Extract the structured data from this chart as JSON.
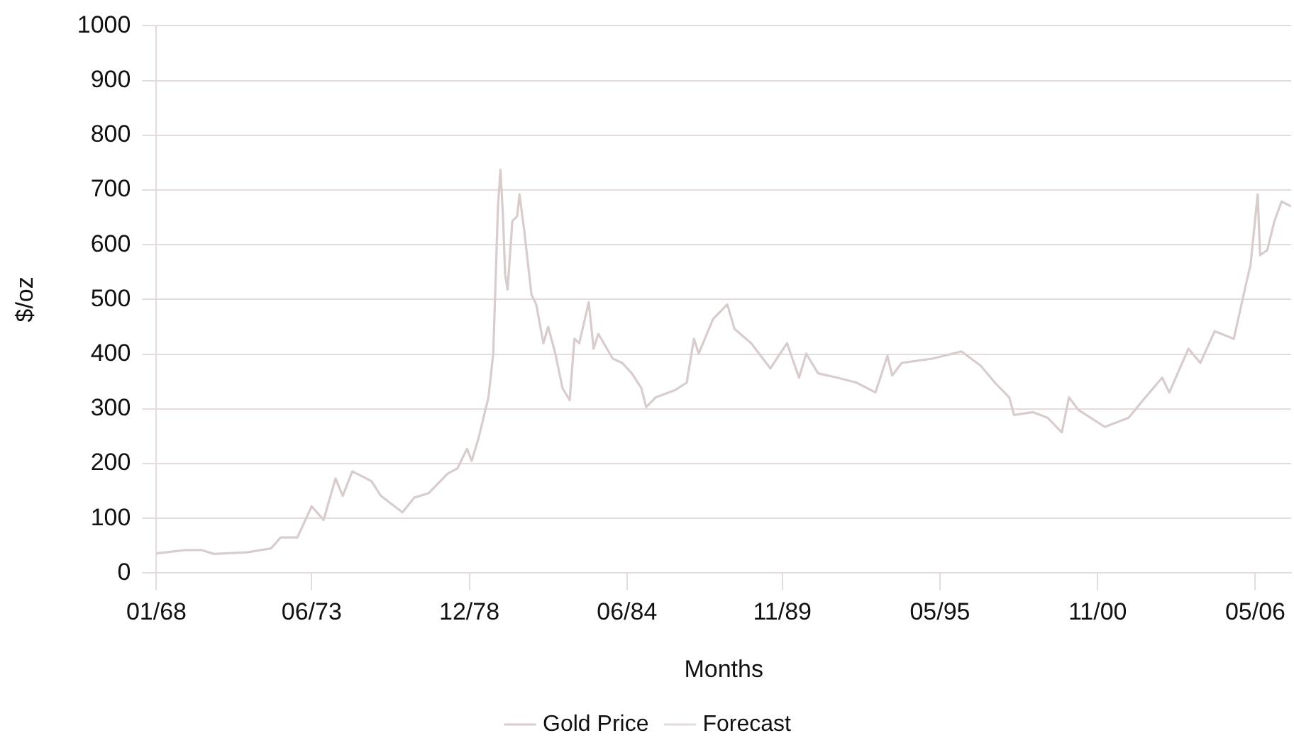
{
  "chart_data": {
    "type": "line",
    "xlabel": "Months",
    "ylabel": "$/oz",
    "xlim": [
      "1968-01",
      "2007-08"
    ],
    "xticks": [
      {
        "value": "1968-01",
        "label": "01/68"
      },
      {
        "value": "1973-06",
        "label": "06/73"
      },
      {
        "value": "1978-12",
        "label": "12/78"
      },
      {
        "value": "1984-06",
        "label": "06/84"
      },
      {
        "value": "1989-11",
        "label": "11/89"
      },
      {
        "value": "1995-05",
        "label": "05/95"
      },
      {
        "value": "2000-11",
        "label": "11/00"
      },
      {
        "value": "2006-05",
        "label": "05/06"
      }
    ],
    "ylim": [
      0,
      1000
    ],
    "yticks": [
      0,
      100,
      200,
      300,
      400,
      500,
      600,
      700,
      800,
      900,
      1000
    ],
    "grid": "y",
    "legend": "bottom",
    "marker": "none",
    "line_style": "solid",
    "series": [
      {
        "name": "Gold Price",
        "color": "#d8cccc",
        "x": [
          "1968-01",
          "1969-01",
          "1969-08",
          "1970-01",
          "1971-03",
          "1972-01",
          "1972-05",
          "1972-12",
          "1973-06",
          "1973-11",
          "1974-04",
          "1974-07",
          "1974-11",
          "1975-07",
          "1975-11",
          "1976-08",
          "1977-01",
          "1977-07",
          "1978-03",
          "1978-07",
          "1978-11",
          "1979-01",
          "1979-04",
          "1979-07",
          "1979-08",
          "1979-10",
          "1979-12",
          "1980-01",
          "1980-02",
          "1980-03",
          "1980-04",
          "1980-06",
          "1980-08",
          "1980-09",
          "1980-11",
          "1981-02",
          "1981-04",
          "1981-07",
          "1981-09",
          "1981-12",
          "1982-03",
          "1982-06",
          "1982-08",
          "1982-10",
          "1983-02",
          "1983-04",
          "1983-06",
          "1983-12",
          "1984-04",
          "1984-08",
          "1984-12",
          "1985-02",
          "1985-06",
          "1986-02",
          "1986-07",
          "1986-10",
          "1986-12",
          "1987-06",
          "1987-12",
          "1988-03",
          "1988-10",
          "1989-06",
          "1990-01",
          "1990-06",
          "1990-09",
          "1991-02",
          "1991-10",
          "1992-06",
          "1993-02",
          "1993-07",
          "1993-09",
          "1994-01",
          "1995-02",
          "1996-02",
          "1996-10",
          "1997-04",
          "1997-10",
          "1997-12",
          "1998-08",
          "1999-02",
          "1999-08",
          "1999-11",
          "2000-03",
          "2001-02",
          "2001-12",
          "2002-06",
          "2003-02",
          "2003-05",
          "2004-01",
          "2004-06",
          "2004-12",
          "2005-08",
          "2006-01",
          "2006-03",
          "2006-06",
          "2006-07",
          "2006-10",
          "2007-01",
          "2007-04",
          "2007-08"
        ],
        "values": [
          36,
          42,
          42,
          35,
          38,
          45,
          65,
          65,
          122,
          97,
          173,
          141,
          186,
          168,
          141,
          111,
          138,
          146,
          182,
          191,
          227,
          205,
          249,
          303,
          321,
          401,
          670,
          737,
          660,
          545,
          518,
          643,
          652,
          692,
          625,
          509,
          491,
          420,
          450,
          401,
          338,
          316,
          428,
          420,
          495,
          410,
          437,
          392,
          384,
          365,
          338,
          303,
          321,
          334,
          348,
          428,
          401,
          464,
          491,
          446,
          420,
          374,
          420,
          357,
          401,
          365,
          357,
          348,
          330,
          397,
          361,
          384,
          392,
          405,
          379,
          348,
          321,
          289,
          294,
          284,
          257,
          321,
          298,
          267,
          284,
          316,
          357,
          330,
          410,
          384,
          442,
          428,
          526,
          563,
          692,
          581,
          590,
          643,
          679,
          670
        ]
      },
      {
        "name": "Forecast",
        "color": "#e2dcdc"
      }
    ]
  }
}
